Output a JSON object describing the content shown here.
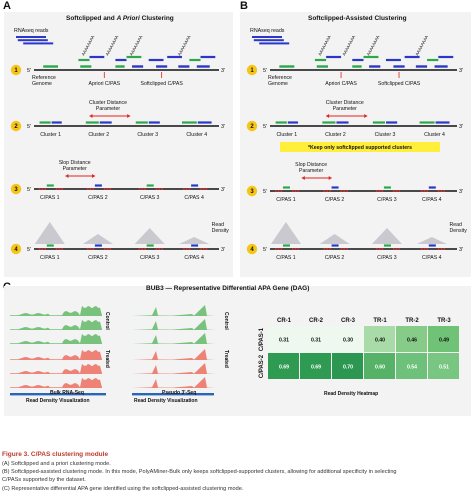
{
  "panelA": {
    "letter": "A",
    "title_pre": "Softclipped and ",
    "title_italic": "A Priori",
    "title_post": " Clustering",
    "rnaseq_label": "RNAseq reads",
    "ref_label_1": "Reference",
    "ref_label_2": "Genome",
    "apriori_label": "Apriori C/PAS",
    "softclipped_label": "Softclipped C/PAS",
    "cluster_distance_1": "Cluster Distance",
    "cluster_distance_2": "Parameter",
    "clusters": [
      "Cluster 1",
      "Cluster 2",
      "Cluster 3",
      "Cluster 4"
    ],
    "slop_1": "Slop Distance",
    "slop_2": "Parameter",
    "cpas": [
      "C/PAS 1",
      "C/PAS 2",
      "C/PAS 3",
      "C/PAS 4"
    ],
    "read_density_1": "Read",
    "read_density_2": "Density",
    "steps": [
      "1",
      "2",
      "3",
      "4"
    ],
    "five": "5'",
    "three": "3'",
    "polyA": "AAAAAAAA"
  },
  "panelB": {
    "letter": "B",
    "title": "Softclipped-Assisted Clustering",
    "rnaseq_label": "RNAseq reads",
    "ref_label_1": "Reference",
    "ref_label_2": "Genome",
    "apriori_label": "Apriori C/PAS",
    "softclipped_label": "Softclipped C/PAS",
    "cluster_distance_1": "Cluster Distance",
    "cluster_distance_2": "Parameter",
    "clusters": [
      "Cluster 1",
      "Cluster 2",
      "Cluster 3",
      "Cluster 4"
    ],
    "keep_note": "*Keep only softclipped supported clusters",
    "slop_1": "Slop Distance",
    "slop_2": "Parameter",
    "cpas": [
      "C/PAS 1",
      "C/PAS 2",
      "C/PAS 3",
      "C/PAS 4"
    ],
    "read_density_1": "Read",
    "read_density_2": "Density",
    "steps": [
      "1",
      "2",
      "3",
      "4"
    ],
    "five": "5'",
    "three": "3'",
    "polyA": "AAAAAAAA"
  },
  "panelC": {
    "letter": "C",
    "title": "BUB3 — Representative Differential APA Gene (DAG)",
    "bulk_label_1": "Bulk RNA-Seq",
    "bulk_label_2": "Read Density Visualization",
    "pseudo_label_1": "Pseudo 3'-Seq",
    "pseudo_label_2": "Read Density Visualization",
    "control_label": "Control",
    "treated_label": "Treated",
    "heatmap_title": "Read Density Heatmap",
    "heatmap": {
      "columns": [
        "CR-1",
        "CR-2",
        "CR-3",
        "TR-1",
        "TR-2",
        "TR-3"
      ],
      "rows": [
        "C/PAS-1",
        "C/PAS-2"
      ],
      "values": [
        [
          0.31,
          0.31,
          0.3,
          0.4,
          0.46,
          0.49
        ],
        [
          0.69,
          0.69,
          0.7,
          0.6,
          0.54,
          0.51
        ]
      ],
      "colors": [
        [
          "#eef8ee",
          "#eef8ee",
          "#eef8ee",
          "#a8dba8",
          "#86cc88",
          "#6fc276"
        ],
        [
          "#2e9a52",
          "#2e9a52",
          "#2b9750",
          "#55b266",
          "#6ec17a",
          "#79c683"
        ]
      ]
    }
  },
  "caption": {
    "title": "Figure 3. C/PAS clustering module",
    "lines": [
      "(A) Softclipped and a priori clustering mode.",
      "(B) Softclipped-assisted clustering mode. In this mode, PolyAMiner-Bulk only keeps softclipped-supported clusters, allowing for additional specificity in selecting",
      "C/PASs supported by the dataset.",
      "(C) Representative differential APA gene identified using the softclipped-assisted clustering mode."
    ]
  },
  "colors": {
    "green": "#2aa84a",
    "blue": "#2a37c8",
    "red": "#e02020",
    "yellow": "#f5c518",
    "note_bg": "#ffef3a",
    "accent_red": "#c0392b",
    "panel_bg": "#f3f3f3"
  }
}
